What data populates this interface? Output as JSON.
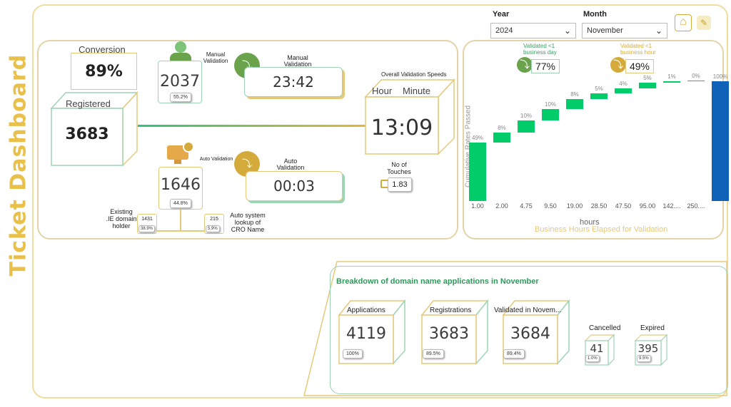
{
  "title": "Ticket Dashboard",
  "filters": {
    "year_label": "Year",
    "year_value": "2024",
    "month_label": "Month",
    "month_value": "November"
  },
  "toolbar": {
    "home_icon": "home-icon",
    "edit_icon": "edit-icon"
  },
  "conversion": {
    "label": "Conversion",
    "value": "89%"
  },
  "registered": {
    "label": "Registered",
    "value": "3683"
  },
  "manual": {
    "icon_label": "Manual Validation",
    "count": "2037",
    "pct": "55.2%",
    "time_label": "Manual Validation",
    "time": "23:42"
  },
  "auto": {
    "icon_label": "Auto Validation",
    "count": "1646",
    "pct": "44.8%",
    "time_label": "Auto Validation",
    "time": "00:03"
  },
  "overall": {
    "label": "Overall Validation Speeds",
    "hour_label": "Hour",
    "minute_label": "Minute",
    "time": "13:09",
    "touches_label": "No of Touches",
    "touches": "1.83"
  },
  "existing": {
    "label": "Existing .IE domain holder",
    "count": "1431",
    "pct": "38.9%"
  },
  "cro": {
    "label": "Auto system lookup of CRO Name",
    "count": "215",
    "pct": "5.9%"
  },
  "speed_chart": {
    "day_label": "Validated <1 business day",
    "day_value": "77%",
    "hour_label": "Validated <1 business hour",
    "hour_value": "49%",
    "ylabel": "Cumulative Rates Passed",
    "xlabel": "hours",
    "subtitle": "Business Hours Elapsed for Validation"
  },
  "chart_data": {
    "type": "bar",
    "categories": [
      "1.00",
      "2.00",
      "4.75",
      "9.50",
      "19.00",
      "28.50",
      "47.50",
      "95.00",
      "142....",
      "250....",
      ""
    ],
    "increments": [
      49,
      8,
      10,
      10,
      8,
      5,
      4,
      5,
      1,
      0,
      100
    ],
    "labels": [
      "49%",
      "8%",
      "10%",
      "10%",
      "8%",
      "5%",
      "4%",
      "5%",
      "1%",
      "0%",
      "100%"
    ],
    "ylim": [
      0,
      100
    ],
    "colors": {
      "step": "#00cc6a",
      "total": "#0f62b7"
    }
  },
  "breakdown": {
    "title": "Breakdown of domain name applications in",
    "month": "November",
    "applications": {
      "label": "Applications",
      "value": "4119",
      "pct": "100%"
    },
    "registrations": {
      "label": "Registrations",
      "value": "3683",
      "pct": "89.5%"
    },
    "validated": {
      "label": "Validated in Novem...",
      "value": "3684",
      "pct": "89.4%"
    },
    "cancelled": {
      "label": "Cancelled",
      "value": "41",
      "pct": "1.0%"
    },
    "expired": {
      "label": "Expired",
      "value": "395",
      "pct": "9.5%"
    }
  }
}
